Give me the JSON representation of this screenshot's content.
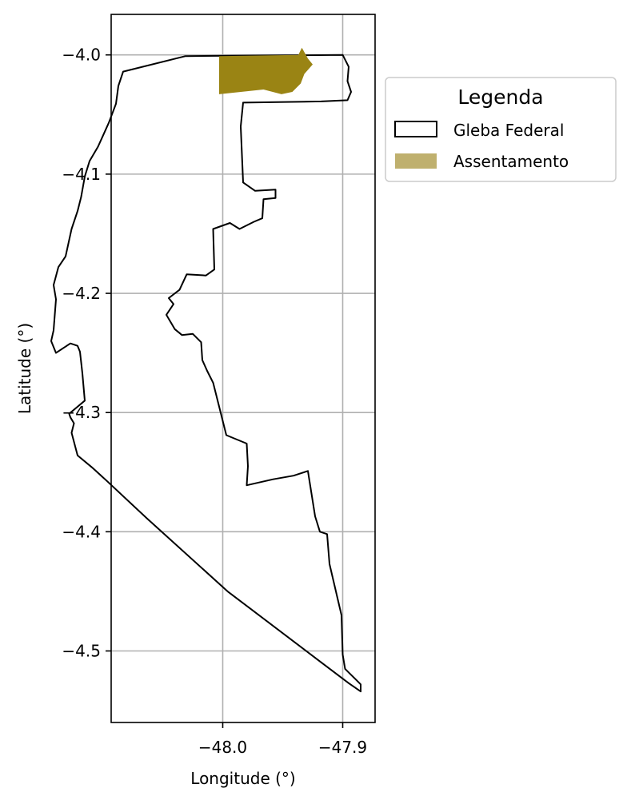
{
  "chart_data": {
    "type": "map",
    "xlabel": "Longitude (°)",
    "ylabel": "Latitude (°)",
    "xlim": [
      -48.093,
      -47.873
    ],
    "ylim": [
      -4.56,
      -3.966
    ],
    "grid": true,
    "xticks": [
      {
        "value": -48.0,
        "label": "−48.0"
      },
      {
        "value": -47.9,
        "label": "−47.9"
      }
    ],
    "yticks": [
      {
        "value": -4.0,
        "label": "−4.0"
      },
      {
        "value": -4.1,
        "label": "−4.1"
      },
      {
        "value": -4.2,
        "label": "−4.2"
      },
      {
        "value": -4.3,
        "label": "−4.3"
      },
      {
        "value": -4.4,
        "label": "−4.4"
      },
      {
        "value": -4.5,
        "label": "−4.5"
      }
    ],
    "legend": {
      "title": "Legenda",
      "placement": "outside-upper-right",
      "entries": [
        {
          "label": "Gleba Federal",
          "style": "outline",
          "color": "#000000"
        },
        {
          "label": "Assentamento",
          "style": "fill",
          "color": "#bfb06e"
        }
      ]
    },
    "features": [
      {
        "name": "Gleba Federal",
        "fill": "none",
        "stroke": "#000000",
        "coordinates": [
          [
            -48.031,
            -4.001
          ],
          [
            -47.9,
            -4.0
          ],
          [
            -47.895,
            -4.01
          ],
          [
            -47.896,
            -4.022
          ],
          [
            -47.893,
            -4.031
          ],
          [
            -47.896,
            -4.038
          ],
          [
            -47.918,
            -4.039
          ],
          [
            -47.983,
            -4.04
          ],
          [
            -47.985,
            -4.06
          ],
          [
            -47.983,
            -4.107
          ],
          [
            -47.973,
            -4.114
          ],
          [
            -47.956,
            -4.113
          ],
          [
            -47.956,
            -4.12
          ],
          [
            -47.966,
            -4.121
          ],
          [
            -47.967,
            -4.137
          ],
          [
            -47.974,
            -4.14
          ],
          [
            -47.986,
            -4.146
          ],
          [
            -47.994,
            -4.141
          ],
          [
            -48.008,
            -4.146
          ],
          [
            -48.007,
            -4.18
          ],
          [
            -48.014,
            -4.185
          ],
          [
            -48.03,
            -4.184
          ],
          [
            -48.036,
            -4.197
          ],
          [
            -48.045,
            -4.204
          ],
          [
            -48.041,
            -4.209
          ],
          [
            -48.047,
            -4.218
          ],
          [
            -48.04,
            -4.23
          ],
          [
            -48.034,
            -4.235
          ],
          [
            -48.025,
            -4.234
          ],
          [
            -48.018,
            -4.241
          ],
          [
            -48.017,
            -4.256
          ],
          [
            -48.013,
            -4.265
          ],
          [
            -48.008,
            -4.275
          ],
          [
            -47.997,
            -4.319
          ],
          [
            -47.98,
            -4.326
          ],
          [
            -47.979,
            -4.345
          ],
          [
            -47.98,
            -4.361
          ],
          [
            -47.958,
            -4.356
          ],
          [
            -47.941,
            -4.353
          ],
          [
            -47.929,
            -4.349
          ],
          [
            -47.923,
            -4.387
          ],
          [
            -47.919,
            -4.4
          ],
          [
            -47.913,
            -4.402
          ],
          [
            -47.911,
            -4.427
          ],
          [
            -47.901,
            -4.47
          ],
          [
            -47.9,
            -4.503
          ],
          [
            -47.898,
            -4.515
          ],
          [
            -47.895,
            -4.518
          ],
          [
            -47.889,
            -4.524
          ],
          [
            -47.885,
            -4.528
          ],
          [
            -47.885,
            -4.534
          ],
          [
            -47.895,
            -4.527
          ],
          [
            -47.92,
            -4.508
          ],
          [
            -47.996,
            -4.45
          ],
          [
            -48.063,
            -4.389
          ],
          [
            -48.097,
            -4.357
          ],
          [
            -48.109,
            -4.346
          ],
          [
            -48.121,
            -4.336
          ],
          [
            -48.126,
            -4.317
          ],
          [
            -48.124,
            -4.309
          ],
          [
            -48.127,
            -4.304
          ],
          [
            -48.128,
            -4.301
          ],
          [
            -48.115,
            -4.29
          ],
          [
            -48.117,
            -4.267
          ],
          [
            -48.119,
            -4.249
          ],
          [
            -48.121,
            -4.244
          ],
          [
            -48.127,
            -4.242
          ],
          [
            -48.139,
            -4.25
          ],
          [
            -48.143,
            -4.24
          ],
          [
            -48.141,
            -4.231
          ],
          [
            -48.139,
            -4.205
          ],
          [
            -48.141,
            -4.193
          ],
          [
            -48.137,
            -4.178
          ],
          [
            -48.131,
            -4.169
          ],
          [
            -48.126,
            -4.146
          ],
          [
            -48.121,
            -4.131
          ],
          [
            -48.118,
            -4.119
          ],
          [
            -48.115,
            -4.102
          ],
          [
            -48.111,
            -4.089
          ],
          [
            -48.104,
            -4.077
          ],
          [
            -48.095,
            -4.057
          ],
          [
            -48.089,
            -4.041
          ],
          [
            -48.087,
            -4.026
          ],
          [
            -48.083,
            -4.014
          ],
          [
            -48.031,
            -4.001
          ]
        ]
      },
      {
        "name": "Assentamento",
        "fill": "#9a8414",
        "stroke": "none",
        "coordinates": [
          [
            -48.003,
            -4.001
          ],
          [
            -47.937,
            -4.0
          ],
          [
            -47.934,
            -3.994
          ],
          [
            -47.929,
            -4.003
          ],
          [
            -47.925,
            -4.008
          ],
          [
            -47.932,
            -4.016
          ],
          [
            -47.935,
            -4.024
          ],
          [
            -47.94,
            -4.029
          ],
          [
            -47.942,
            -4.031
          ],
          [
            -47.951,
            -4.033
          ],
          [
            -47.966,
            -4.029
          ],
          [
            -48.003,
            -4.033
          ],
          [
            -48.003,
            -4.001
          ]
        ]
      }
    ]
  }
}
